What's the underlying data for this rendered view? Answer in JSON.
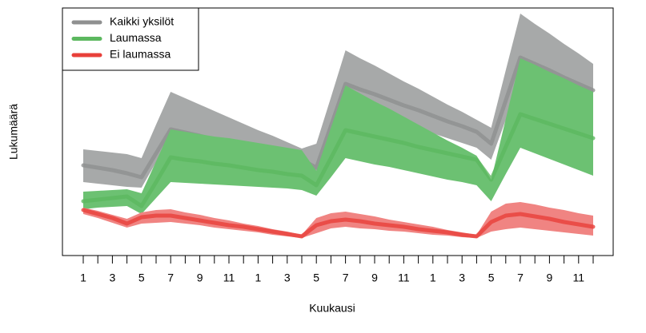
{
  "chart_data": {
    "type": "band-line",
    "x_label": "Kuukausi",
    "y_label": "Lukumäärä",
    "categories": [
      "1",
      null,
      "3",
      null,
      "5",
      null,
      "7",
      null,
      "9",
      null,
      "11",
      null,
      "1",
      null,
      "3",
      null,
      "5",
      null,
      "7",
      null,
      "9",
      null,
      "11",
      null,
      "1",
      null,
      "3",
      null,
      "5",
      null,
      "7",
      null,
      "9",
      null,
      "11",
      null
    ],
    "ylim": [
      0,
      310
    ],
    "legend": "top-left",
    "series": [
      {
        "name": "Kaikki yksilöt",
        "color": "#8f9090",
        "band_color": "#a7a9a9",
        "values": [
          113,
          110,
          107,
          103,
          98,
          128,
          158,
          154,
          150,
          145,
          141,
          137,
          133,
          129,
          124,
          120,
          110,
          162,
          215,
          208,
          202,
          195,
          188,
          182,
          175,
          168,
          162,
          155,
          140,
          194,
          248,
          240,
          232,
          223,
          215,
          207
        ],
        "upper": [
          133,
          131,
          129,
          127,
          122,
          164,
          205,
          197,
          189,
          181,
          173,
          165,
          157,
          150,
          142,
          134,
          140,
          198,
          257,
          247,
          238,
          228,
          218,
          209,
          199,
          189,
          180,
          170,
          160,
          232,
          303,
          290,
          278,
          265,
          253,
          240
        ],
        "lower": [
          92,
          90,
          88,
          86,
          85,
          117,
          150,
          145,
          140,
          135,
          130,
          125,
          120,
          115,
          110,
          105,
          95,
          142,
          190,
          184,
          178,
          172,
          166,
          160,
          153,
          147,
          141,
          135,
          120,
          170,
          220,
          210,
          201,
          191,
          182,
          172
        ]
      },
      {
        "name": "Laumassa",
        "color": "#5cb85f",
        "band_color": "#6cc172",
        "values": [
          68,
          70,
          72,
          74,
          62,
          92,
          123,
          120,
          118,
          115,
          113,
          110,
          107,
          105,
          102,
          100,
          88,
          122,
          157,
          153,
          149,
          145,
          141,
          136,
          132,
          128,
          124,
          120,
          95,
          136,
          177,
          171,
          165,
          159,
          153,
          147
        ],
        "upper": [
          80,
          81,
          82,
          83,
          78,
          118,
          158,
          155,
          152,
          149,
          147,
          144,
          141,
          138,
          135,
          132,
          106,
          160,
          213,
          203,
          193,
          184,
          174,
          164,
          154,
          144,
          135,
          125,
          95,
          171,
          247,
          239,
          230,
          222,
          213,
          205
        ],
        "lower": [
          58,
          60,
          61,
          62,
          52,
          72,
          92,
          91,
          90,
          89,
          88,
          87,
          86,
          85,
          84,
          82,
          75,
          98,
          122,
          118,
          114,
          111,
          107,
          103,
          99,
          95,
          92,
          88,
          68,
          102,
          135,
          128,
          121,
          114,
          107,
          100
        ]
      },
      {
        "name": "Ei laumassa",
        "color": "#e8403a",
        "band_color": "#f08482",
        "values": [
          57,
          52,
          47,
          40,
          48,
          50,
          50,
          47,
          44,
          41,
          38,
          36,
          33,
          30,
          27,
          24,
          38,
          43,
          45,
          43,
          40,
          38,
          36,
          33,
          31,
          29,
          26,
          24,
          42,
          50,
          52,
          49,
          46,
          42,
          39,
          36
        ],
        "upper": [
          60,
          56,
          51,
          46,
          54,
          57,
          58,
          54,
          51,
          47,
          44,
          40,
          37,
          33,
          30,
          26,
          47,
          53,
          55,
          52,
          49,
          45,
          42,
          39,
          36,
          32,
          29,
          26,
          55,
          65,
          67,
          64,
          60,
          57,
          53,
          50
        ],
        "lower": [
          52,
          47,
          41,
          35,
          40,
          41,
          42,
          40,
          38,
          35,
          33,
          31,
          29,
          26,
          24,
          22,
          28,
          34,
          36,
          34,
          33,
          31,
          30,
          28,
          26,
          25,
          23,
          22,
          30,
          33,
          35,
          33,
          31,
          29,
          27,
          25
        ]
      }
    ]
  }
}
